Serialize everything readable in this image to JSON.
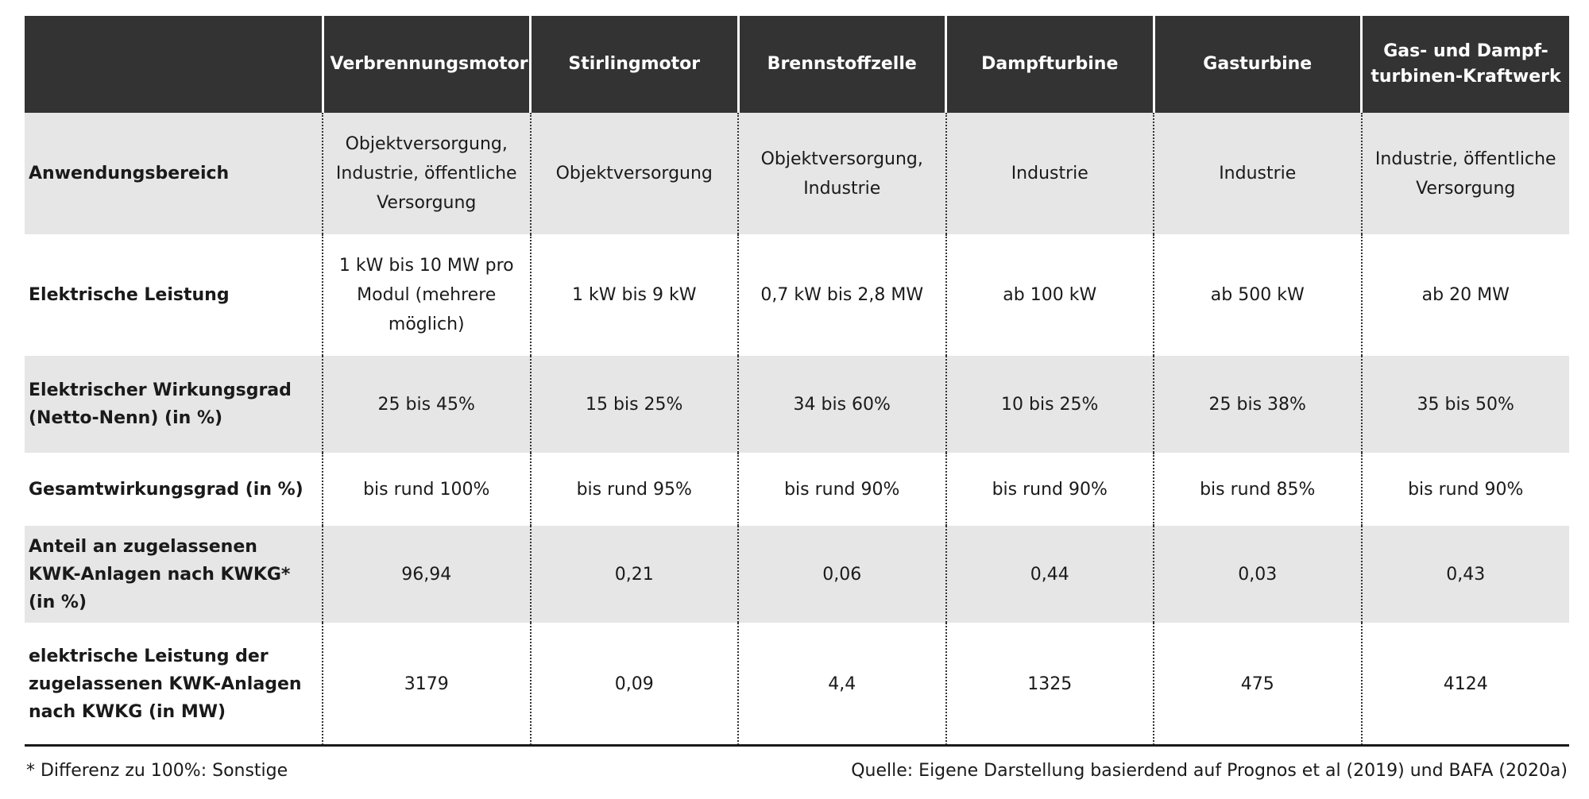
{
  "table": {
    "header": [
      "",
      "Verbrennungsmotor",
      "Stirlingmotor",
      "Brennstoffzelle",
      "Dampfturbine",
      "Gasturbine",
      "Gas- und Dampf-turbinen-Kraftwerk"
    ],
    "rows": [
      {
        "label": "Anwendungsbereich",
        "cells": [
          "Objektversorgung, Industrie, öffentliche Versorgung",
          "Objektversorgung",
          "Objektversorgung, Industrie",
          "Industrie",
          "Industrie",
          "Industrie, öffentliche Versorgung"
        ]
      },
      {
        "label": "Elektrische Leistung",
        "cells": [
          "1 kW bis 10 MW pro Modul (mehrere möglich)",
          "1 kW bis 9 kW",
          "0,7 kW bis 2,8 MW",
          "ab 100 kW",
          "ab 500 kW",
          "ab 20 MW"
        ]
      },
      {
        "label": "Elektrischer Wirkungsgrad (Netto-Nenn) (in %)",
        "cells": [
          "25 bis 45%",
          "15 bis 25%",
          "34 bis 60%",
          "10 bis 25%",
          "25 bis 38%",
          "35 bis 50%"
        ]
      },
      {
        "label": "Gesamtwirkungsgrad (in %)",
        "cells": [
          "bis rund 100%",
          "bis rund 95%",
          "bis rund 90%",
          "bis rund 90%",
          "bis rund 85%",
          "bis rund 90%"
        ]
      },
      {
        "label": "Anteil an zugelassenen KWK-Anlagen nach KWKG* (in %)",
        "cells": [
          "96,94",
          "0,21",
          "0,06",
          "0,44",
          "0,03",
          "0,43"
        ]
      },
      {
        "label": "elektrische Leistung der zugelassenen KWK-Anlagen nach KWKG (in MW)",
        "cells": [
          "3179",
          "0,09",
          "4,4",
          "1325",
          "475",
          "4124"
        ]
      }
    ]
  },
  "footnote": "* Differenz zu 100%: Sonstige",
  "source": "Quelle: Eigene Darstellung basierdend auf Prognos et al (2019) und BAFA (2020a)",
  "colors": {
    "header_bg": "#333333",
    "shaded_row_bg": "#e6e6e6",
    "text": "#1a1a1a"
  }
}
